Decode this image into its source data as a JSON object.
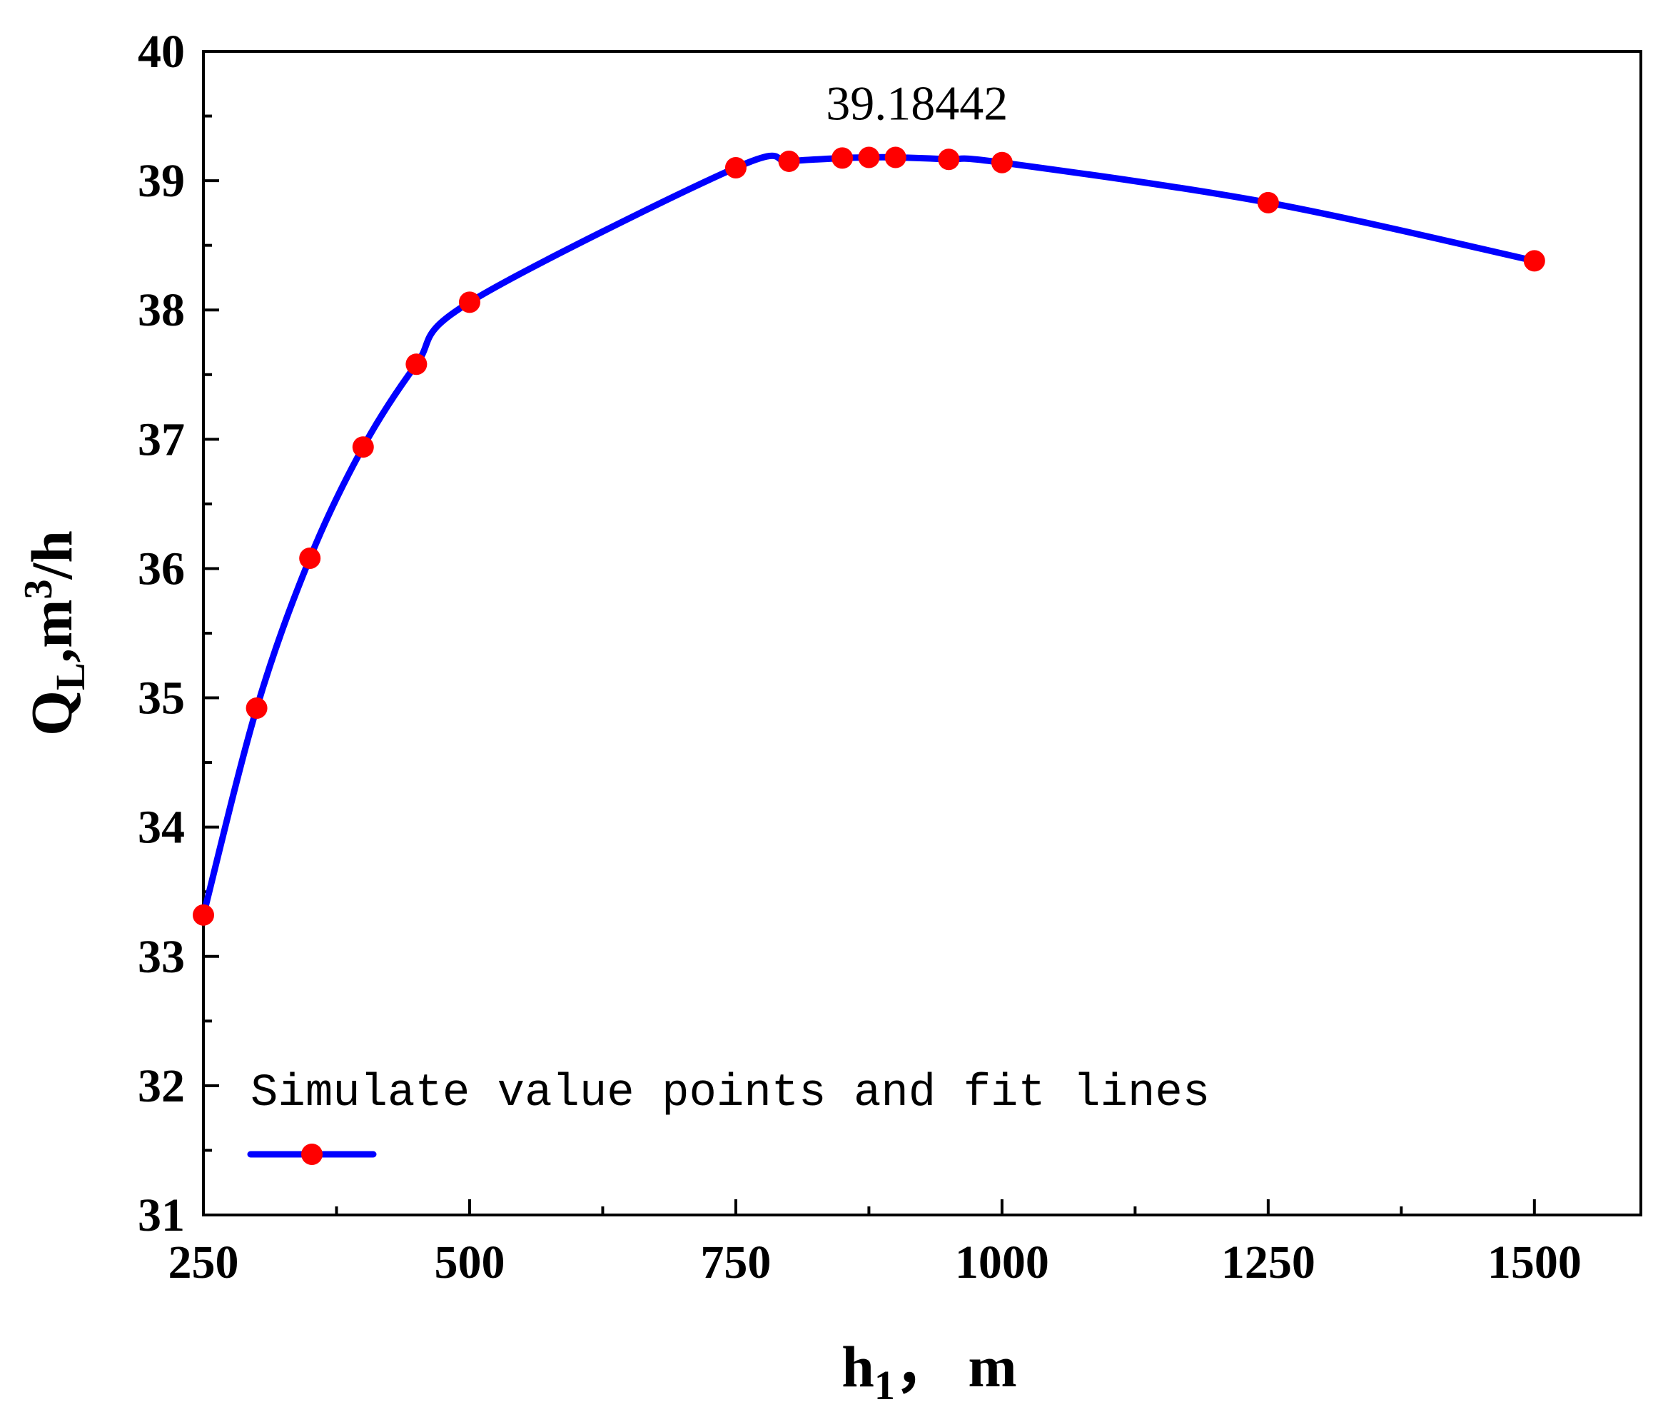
{
  "chart_data": {
    "type": "line",
    "title": "",
    "xlabel": {
      "main": "h",
      "sub": "1",
      "suffix": "， m"
    },
    "ylabel": {
      "main": "Q",
      "sub": "L",
      "mid": ",m",
      "sup": "3",
      "suffix": "/h"
    },
    "xlim": [
      250,
      1600
    ],
    "ylim": [
      31,
      40
    ],
    "xticks_major": [
      250,
      500,
      750,
      1000,
      1250,
      1500
    ],
    "xtick_labels": [
      "250",
      "500",
      "750",
      "1000",
      "1250",
      "1500"
    ],
    "xticks_minor": [
      375,
      625,
      875,
      1125,
      1375
    ],
    "yticks_major": [
      31,
      32,
      33,
      34,
      35,
      36,
      37,
      38,
      39,
      40
    ],
    "ytick_labels": [
      "31",
      "32",
      "33",
      "34",
      "35",
      "36",
      "37",
      "38",
      "39",
      "40"
    ],
    "grid": false,
    "legend": {
      "position": "bottom-left",
      "label": "Simulate value points and fit lines"
    },
    "colors": {
      "line": "#0000ff",
      "marker": "#ff0000",
      "axis": "#000000"
    },
    "series": [
      {
        "name": "Simulate value points and fit lines",
        "x": [
          250,
          300,
          350,
          400,
          450,
          500,
          750,
          800,
          850,
          875,
          900,
          950,
          1000,
          1250,
          1500
        ],
        "y": [
          33.32,
          34.92,
          36.08,
          36.94,
          37.58,
          38.06,
          39.1,
          39.15,
          39.175,
          39.18,
          39.18,
          39.165,
          39.14,
          38.83,
          38.38
        ]
      }
    ],
    "annotations": [
      {
        "text": "39.18442",
        "x": 900,
        "y": 39.18442
      }
    ]
  }
}
